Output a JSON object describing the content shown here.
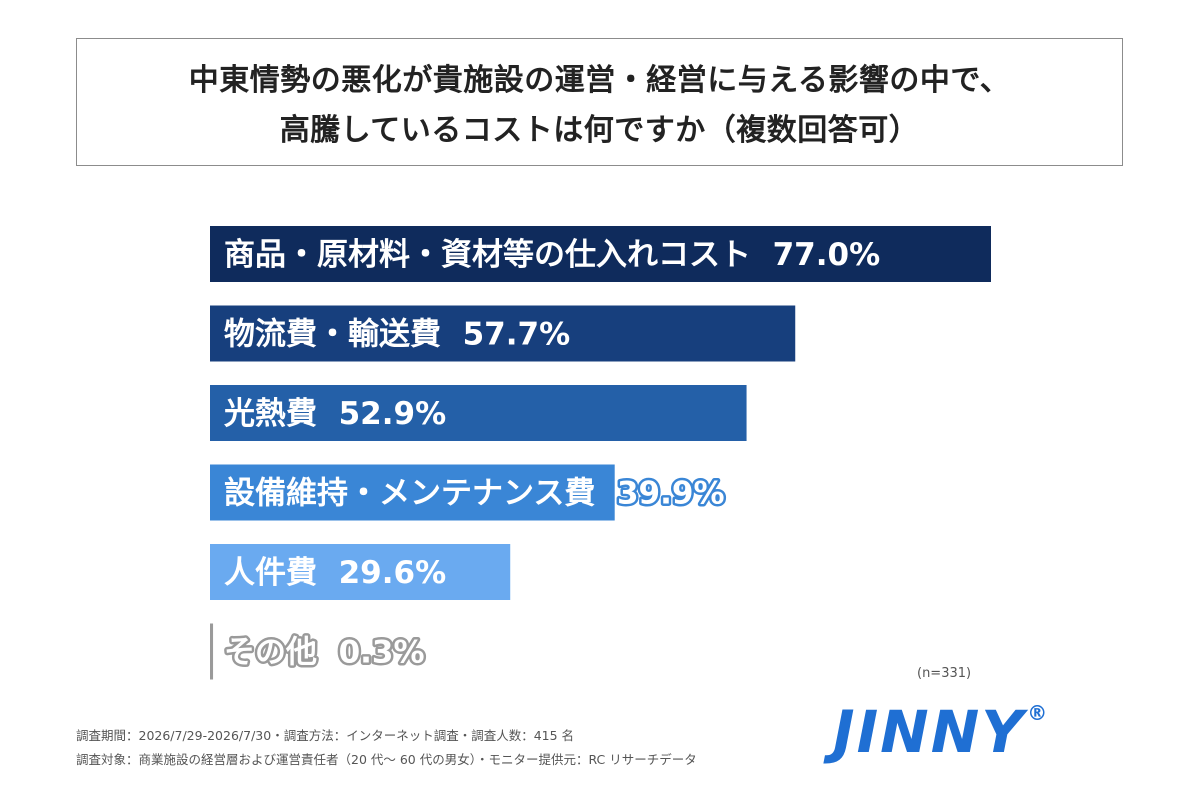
{
  "title": {
    "line1": "中東情勢の悪化が貴施設の運営・経営に与える影響の中で、",
    "line2": "高騰しているコストは何ですか（複数回答可）"
  },
  "chart_data": {
    "type": "bar",
    "orientation": "horizontal",
    "categories": [
      "商品・原材料・資材等の仕入れコスト",
      "物流費・輸送費",
      "光熱費",
      "設備維持・メンテナンス費",
      "人件費",
      "その他"
    ],
    "values": [
      77.0,
      57.7,
      52.9,
      39.9,
      29.6,
      0.3
    ],
    "value_labels": [
      "77.0%",
      "57.7%",
      "52.9%",
      "39.9%",
      "29.6%",
      "0.3%"
    ],
    "colors": [
      "#0f2b5c",
      "#173f7d",
      "#2460a8",
      "#3a86d6",
      "#6aaaf0",
      "#9a9a9a"
    ],
    "xlim": [
      0,
      100
    ],
    "grid": false,
    "legend": "none"
  },
  "sample_note": "(n=331)",
  "footnotes": {
    "line1": "調査期間：2026/7/29-2026/7/30・調査方法：インターネット調査・調査人数：415 名",
    "line2": "調査対象：商業施設の経営層および運営責任者（20 代〜 60 代の男女）・モニター提供元：RC リサーチデータ"
  },
  "logo": {
    "text": "JINNY",
    "mark": "®"
  }
}
